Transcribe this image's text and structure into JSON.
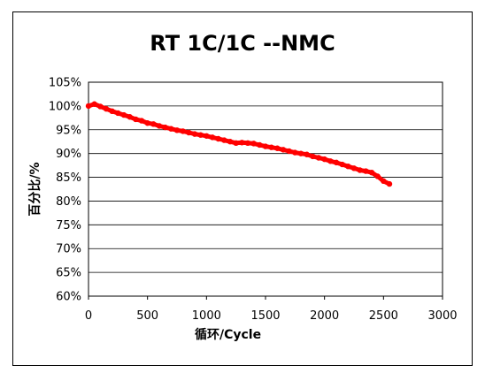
{
  "chart_data": {
    "type": "scatter",
    "title": "RT   1C/1C  --NMC",
    "xlabel": "循环/Cycle",
    "ylabel": "百分比/%",
    "xlim": [
      0,
      3000
    ],
    "ylim": [
      0.6,
      1.05
    ],
    "xticks": [
      0,
      500,
      1000,
      1500,
      2000,
      2500,
      3000
    ],
    "xtick_labels": [
      "0",
      "500",
      "1000",
      "1500",
      "2000",
      "2500",
      "3000"
    ],
    "yticks": [
      0.6,
      0.65,
      0.7,
      0.75,
      0.8,
      0.85,
      0.9,
      0.95,
      1.0,
      1.05
    ],
    "ytick_labels": [
      "60%",
      "65%",
      "70%",
      "75%",
      "80%",
      "85%",
      "90%",
      "95%",
      "100%",
      "105%"
    ],
    "grid": "horizontal",
    "legend": "none",
    "series": [
      {
        "color": "#ff0000",
        "x": [
          0,
          50,
          100,
          150,
          200,
          250,
          300,
          350,
          400,
          450,
          500,
          550,
          600,
          650,
          700,
          750,
          800,
          850,
          900,
          950,
          1000,
          1050,
          1100,
          1150,
          1200,
          1250,
          1300,
          1350,
          1400,
          1450,
          1500,
          1550,
          1600,
          1650,
          1700,
          1750,
          1800,
          1850,
          1900,
          1950,
          2000,
          2050,
          2100,
          2150,
          2200,
          2250,
          2300,
          2350,
          2400,
          2450,
          2500,
          2550
        ],
        "y": [
          1.0,
          1.004,
          0.999,
          0.994,
          0.989,
          0.985,
          0.981,
          0.977,
          0.972,
          0.969,
          0.964,
          0.962,
          0.958,
          0.955,
          0.952,
          0.949,
          0.947,
          0.944,
          0.941,
          0.939,
          0.937,
          0.934,
          0.931,
          0.928,
          0.925,
          0.922,
          0.923,
          0.922,
          0.921,
          0.918,
          0.915,
          0.913,
          0.911,
          0.908,
          0.905,
          0.902,
          0.9,
          0.898,
          0.894,
          0.891,
          0.888,
          0.884,
          0.881,
          0.877,
          0.873,
          0.869,
          0.865,
          0.863,
          0.86,
          0.852,
          0.842,
          0.836
        ]
      }
    ]
  }
}
